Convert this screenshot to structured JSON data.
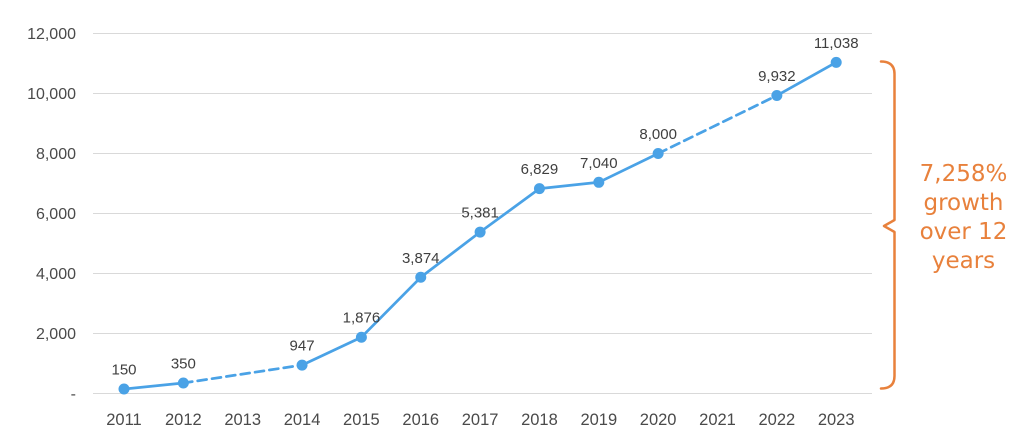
{
  "chart_data": {
    "type": "line",
    "title": "",
    "xlabel": "",
    "ylabel": "",
    "x_labels": [
      "2011",
      "2012",
      "2013",
      "2014",
      "2015",
      "2016",
      "2017",
      "2018",
      "2019",
      "2020",
      "2021",
      "2022",
      "2023"
    ],
    "points": [
      {
        "x": "2011",
        "y": 150,
        "label": "150"
      },
      {
        "x": "2012",
        "y": 350,
        "label": "350"
      },
      {
        "x": "2014",
        "y": 947,
        "label": "947"
      },
      {
        "x": "2015",
        "y": 1876,
        "label": "1,876"
      },
      {
        "x": "2016",
        "y": 3874,
        "label": "3,874"
      },
      {
        "x": "2017",
        "y": 5381,
        "label": "5,381"
      },
      {
        "x": "2018",
        "y": 6829,
        "label": "6,829"
      },
      {
        "x": "2019",
        "y": 7040,
        "label": "7,040"
      },
      {
        "x": "2020",
        "y": 8000,
        "label": "8,000"
      },
      {
        "x": "2022",
        "y": 9932,
        "label": "9,932"
      },
      {
        "x": "2023",
        "y": 11038,
        "label": "11,038"
      }
    ],
    "gap_years_bridged_with_dashes": [
      "2013",
      "2021"
    ],
    "ylim": [
      0,
      12000
    ],
    "y_ticks": [
      {
        "value": 12000,
        "label": "12,000"
      },
      {
        "value": 10000,
        "label": "10,000"
      },
      {
        "value": 8000,
        "label": "8,000"
      },
      {
        "value": 6000,
        "label": "6,000"
      },
      {
        "value": 4000,
        "label": "4,000"
      },
      {
        "value": 2000,
        "label": "2,000"
      },
      {
        "value": 0,
        "label": "-"
      }
    ],
    "grid": "horizontal",
    "legend": "none",
    "colors": {
      "line": "#4aa2e6",
      "grid": "#d9d9d9",
      "axis_text": "#4a4a4a",
      "data_label": "#3f3f3f",
      "annotation": "#e8813c"
    },
    "annotation": {
      "text": "7,258%\ngrowth\nover 12\nyears"
    }
  }
}
